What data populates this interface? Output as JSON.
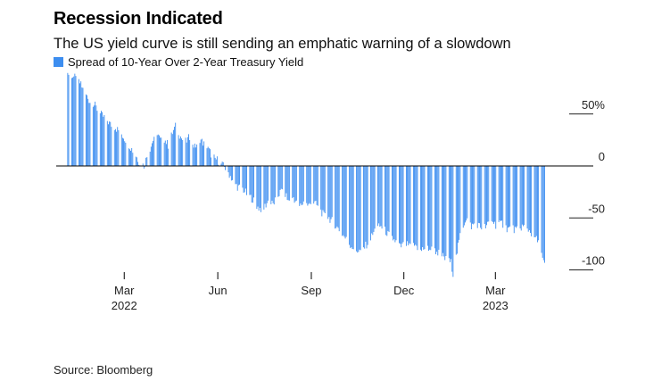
{
  "header": {
    "title": "Recession Indicated",
    "subtitle": "The US yield curve is still sending an emphatic warning of a slowdown"
  },
  "footer": {
    "source": "Source: Bloomberg"
  },
  "colors": {
    "bar": "#3d8ef0",
    "axis": "#000000",
    "gridline": "#222222"
  },
  "chart_data": {
    "type": "bar",
    "title": "Recession Indicated",
    "subtitle": "The US yield curve is still sending an emphatic warning of a slowdown",
    "legend": [
      "Spread of 10-Year Over 2-Year Treasury Yield"
    ],
    "legend_position": "top-left",
    "ylabel": "",
    "xlabel": "",
    "ylim": [
      -110,
      80
    ],
    "y_ticks": [
      {
        "value": 50,
        "label": "50%"
      },
      {
        "value": 0,
        "label": "0"
      },
      {
        "value": -50,
        "label": "-50"
      },
      {
        "value": -100,
        "label": "-100"
      }
    ],
    "x_ticks": [
      {
        "day": 59,
        "label": "Mar",
        "year": "2022"
      },
      {
        "day": 151,
        "label": "Jun",
        "year": ""
      },
      {
        "day": 243,
        "label": "Sep",
        "year": ""
      },
      {
        "day": 334,
        "label": "Dec",
        "year": ""
      },
      {
        "day": 424,
        "label": "Mar",
        "year": "2023"
      }
    ],
    "x_domain": [
      0,
      472
    ],
    "anchors": [
      [
        3,
        89
      ],
      [
        6,
        88
      ],
      [
        10,
        85
      ],
      [
        15,
        80
      ],
      [
        20,
        70
      ],
      [
        25,
        62
      ],
      [
        30,
        58
      ],
      [
        35,
        50
      ],
      [
        40,
        46
      ],
      [
        45,
        40
      ],
      [
        50,
        37
      ],
      [
        55,
        32
      ],
      [
        60,
        25
      ],
      [
        65,
        18
      ],
      [
        70,
        10
      ],
      [
        74,
        3
      ],
      [
        78,
        0
      ],
      [
        82,
        12
      ],
      [
        86,
        22
      ],
      [
        90,
        35
      ],
      [
        94,
        25
      ],
      [
        98,
        26
      ],
      [
        102,
        20
      ],
      [
        106,
        32
      ],
      [
        110,
        40
      ],
      [
        113,
        30
      ],
      [
        118,
        22
      ],
      [
        123,
        28
      ],
      [
        128,
        18
      ],
      [
        133,
        26
      ],
      [
        138,
        20
      ],
      [
        142,
        15
      ],
      [
        146,
        8
      ],
      [
        150,
        6
      ],
      [
        155,
        1
      ],
      [
        158,
        -2
      ],
      [
        162,
        -8
      ],
      [
        166,
        -15
      ],
      [
        170,
        -20
      ],
      [
        175,
        -22
      ],
      [
        180,
        -28
      ],
      [
        185,
        -32
      ],
      [
        190,
        -40
      ],
      [
        195,
        -42
      ],
      [
        200,
        -34
      ],
      [
        205,
        -37
      ],
      [
        210,
        -28
      ],
      [
        215,
        -22
      ],
      [
        220,
        -34
      ],
      [
        225,
        -30
      ],
      [
        230,
        -40
      ],
      [
        235,
        -35
      ],
      [
        240,
        -38
      ],
      [
        245,
        -35
      ],
      [
        250,
        -40
      ],
      [
        255,
        -48
      ],
      [
        260,
        -50
      ],
      [
        265,
        -55
      ],
      [
        270,
        -62
      ],
      [
        275,
        -68
      ],
      [
        280,
        -75
      ],
      [
        285,
        -80
      ],
      [
        290,
        -82
      ],
      [
        295,
        -78
      ],
      [
        300,
        -72
      ],
      [
        305,
        -62
      ],
      [
        310,
        -58
      ],
      [
        315,
        -62
      ],
      [
        320,
        -68
      ],
      [
        325,
        -72
      ],
      [
        330,
        -78
      ],
      [
        335,
        -75
      ],
      [
        340,
        -78
      ],
      [
        345,
        -76
      ],
      [
        350,
        -82
      ],
      [
        355,
        -78
      ],
      [
        360,
        -80
      ],
      [
        365,
        -82
      ],
      [
        370,
        -85
      ],
      [
        375,
        -90
      ],
      [
        380,
        -93
      ],
      [
        382,
        -103
      ],
      [
        385,
        -88
      ],
      [
        390,
        -62
      ],
      [
        395,
        -50
      ],
      [
        400,
        -58
      ],
      [
        405,
        -55
      ],
      [
        410,
        -60
      ],
      [
        415,
        -58
      ],
      [
        420,
        -52
      ],
      [
        425,
        -58
      ],
      [
        430,
        -55
      ],
      [
        435,
        -60
      ],
      [
        440,
        -60
      ],
      [
        445,
        -62
      ],
      [
        450,
        -58
      ],
      [
        455,
        -60
      ],
      [
        460,
        -66
      ],
      [
        465,
        -72
      ],
      [
        468,
        -80
      ],
      [
        470,
        -90
      ],
      [
        472,
        -96
      ]
    ],
    "noise_amplitude": 4
  }
}
